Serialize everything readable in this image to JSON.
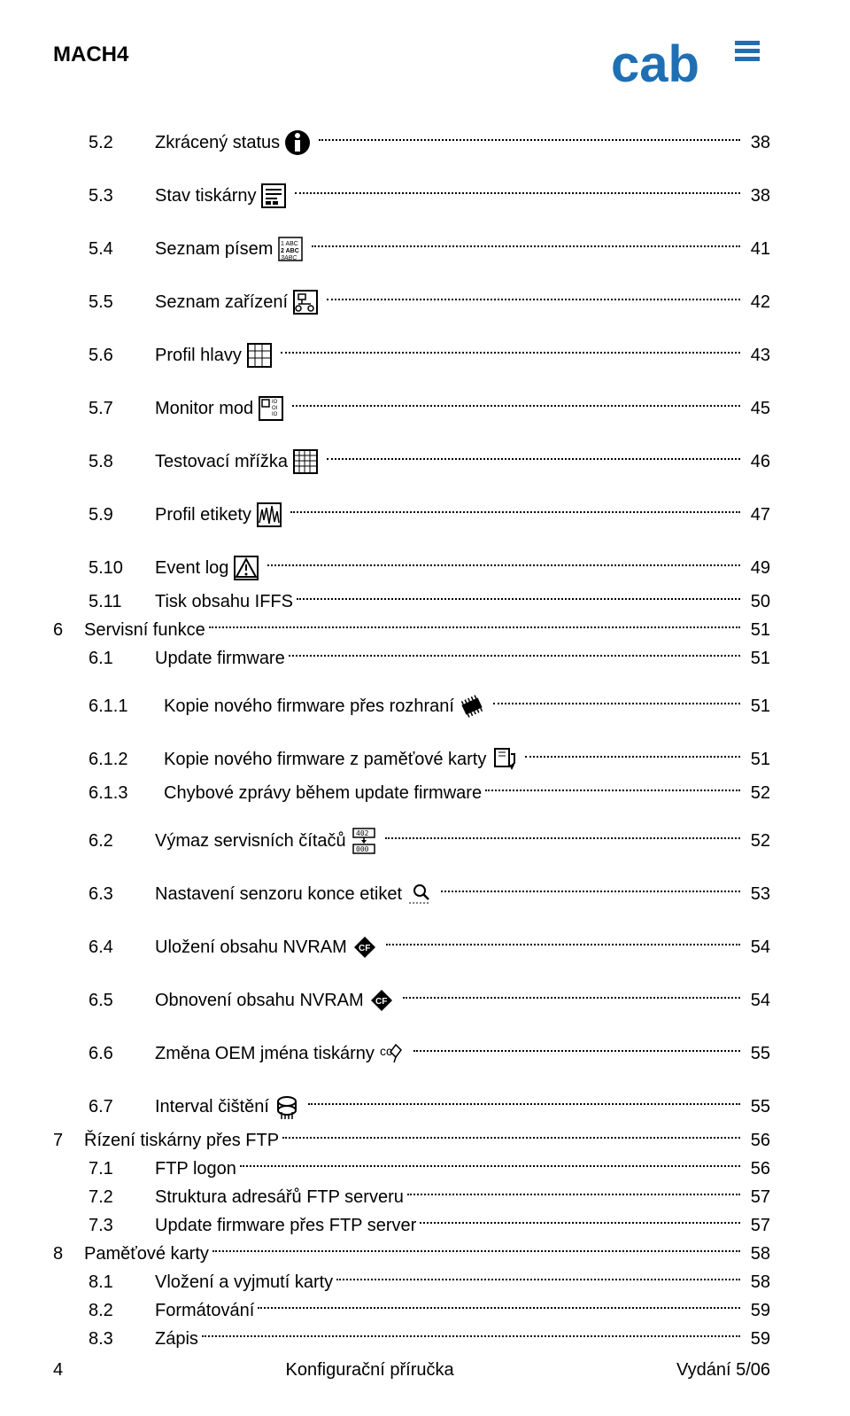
{
  "header": {
    "product": "MACH4"
  },
  "logo": {
    "color": "#1f6fb5"
  },
  "toc": [
    {
      "num": "5.2",
      "title": "Zkrácený status",
      "icon": "info-icon",
      "page": "38",
      "indent": 1,
      "spaced": true
    },
    {
      "num": "5.3",
      "title": "Stav tiskárny",
      "icon": "status-icon",
      "page": "38",
      "indent": 1,
      "spaced": true
    },
    {
      "num": "5.4",
      "title": "Seznam písem",
      "icon": "fonts-icon",
      "page": "41",
      "indent": 1,
      "spaced": true
    },
    {
      "num": "5.5",
      "title": "Seznam zařízení",
      "icon": "devices-icon",
      "page": "42",
      "indent": 1,
      "spaced": true
    },
    {
      "num": "5.6",
      "title": "Profil hlavy",
      "icon": "grid-icon",
      "page": "43",
      "indent": 1,
      "spaced": true
    },
    {
      "num": "5.7",
      "title": "Monitor mod",
      "icon": "monitor-icon",
      "page": "45",
      "indent": 1,
      "spaced": true
    },
    {
      "num": "5.8",
      "title": "Testovací mřížka",
      "icon": "testgrid-icon",
      "page": "46",
      "indent": 1,
      "spaced": true
    },
    {
      "num": "5.9",
      "title": "Profil etikety",
      "icon": "label-profile-icon",
      "page": "47",
      "indent": 1,
      "spaced": true
    },
    {
      "num": "5.10",
      "title": "Event log",
      "icon": "warning-icon",
      "page": "49",
      "indent": 1,
      "spaced": false
    },
    {
      "num": "5.11",
      "title": "Tisk obsahu IFFS",
      "icon": null,
      "page": "50",
      "indent": 1,
      "spaced": false
    },
    {
      "num": "6",
      "title": "Servisní funkce",
      "icon": null,
      "page": "51",
      "indent": 0,
      "spaced": false
    },
    {
      "num": "6.1",
      "title": "Update firmware",
      "icon": null,
      "page": "51",
      "indent": 1,
      "spaced": true
    },
    {
      "num": "6.1.1",
      "title": "Kopie nového firmware přes rozhraní",
      "icon": "chip-icon",
      "page": "51",
      "indent": 2,
      "spaced": true
    },
    {
      "num": "6.1.2",
      "title": "Kopie nového firmware z paměťové karty",
      "icon": "card-write-icon",
      "page": "51",
      "indent": 2,
      "spaced": false
    },
    {
      "num": "6.1.3",
      "title": "Chybové zprávy během update firmware",
      "icon": null,
      "page": "52",
      "indent": 2,
      "spaced": true
    },
    {
      "num": "6.2",
      "title": "Výmaz servisních čítačů",
      "icon": "counter-icon",
      "page": "52",
      "indent": 1,
      "spaced": true
    },
    {
      "num": "6.3",
      "title": "Nastavení senzoru konce etiket",
      "icon": "sensor-icon",
      "page": "53",
      "indent": 1,
      "spaced": true
    },
    {
      "num": "6.4",
      "title": "Uložení obsahu NVRAM",
      "icon": "cf-icon",
      "page": "54",
      "indent": 1,
      "spaced": true
    },
    {
      "num": "6.5",
      "title": "Obnovení  obsahu NVRAM",
      "icon": "cf-icon",
      "page": "54",
      "indent": 1,
      "spaced": true
    },
    {
      "num": "6.6",
      "title": "Změna OEM jména tiskárny",
      "icon": "oem-icon",
      "page": "55",
      "indent": 1,
      "spaced": true
    },
    {
      "num": "6.7",
      "title": "Interval čištění",
      "icon": "clean-icon",
      "page": "55",
      "indent": 1,
      "spaced": false
    },
    {
      "num": "7",
      "title": "Řízení tiskárny přes FTP",
      "icon": null,
      "page": "56",
      "indent": 0,
      "spaced": false
    },
    {
      "num": "7.1",
      "title": "FTP  logon",
      "icon": null,
      "page": "56",
      "indent": 1,
      "spaced": false
    },
    {
      "num": "7.2",
      "title": "Struktura adresářů FTP serveru",
      "icon": null,
      "page": "57",
      "indent": 1,
      "spaced": false
    },
    {
      "num": "7.3",
      "title": "Update firmware přes  FTP server",
      "icon": null,
      "page": "57",
      "indent": 1,
      "spaced": false
    },
    {
      "num": "8",
      "title": "Paměťové karty",
      "icon": null,
      "page": "58",
      "indent": 0,
      "spaced": false
    },
    {
      "num": "8.1",
      "title": "Vložení a vyjmutí karty",
      "icon": null,
      "page": "58",
      "indent": 1,
      "spaced": false
    },
    {
      "num": "8.2",
      "title": "Formátování",
      "icon": null,
      "page": "59",
      "indent": 1,
      "spaced": false
    },
    {
      "num": "8.3",
      "title": "Zápis",
      "icon": null,
      "page": "59",
      "indent": 1,
      "spaced": false
    }
  ],
  "footer": {
    "page_num": "4",
    "center": "Konfigurační příručka",
    "right": "Vydání 5/06"
  },
  "icon_style": {
    "stroke": "#000000",
    "fill_dark": "#000000",
    "fill_white": "#ffffff"
  }
}
